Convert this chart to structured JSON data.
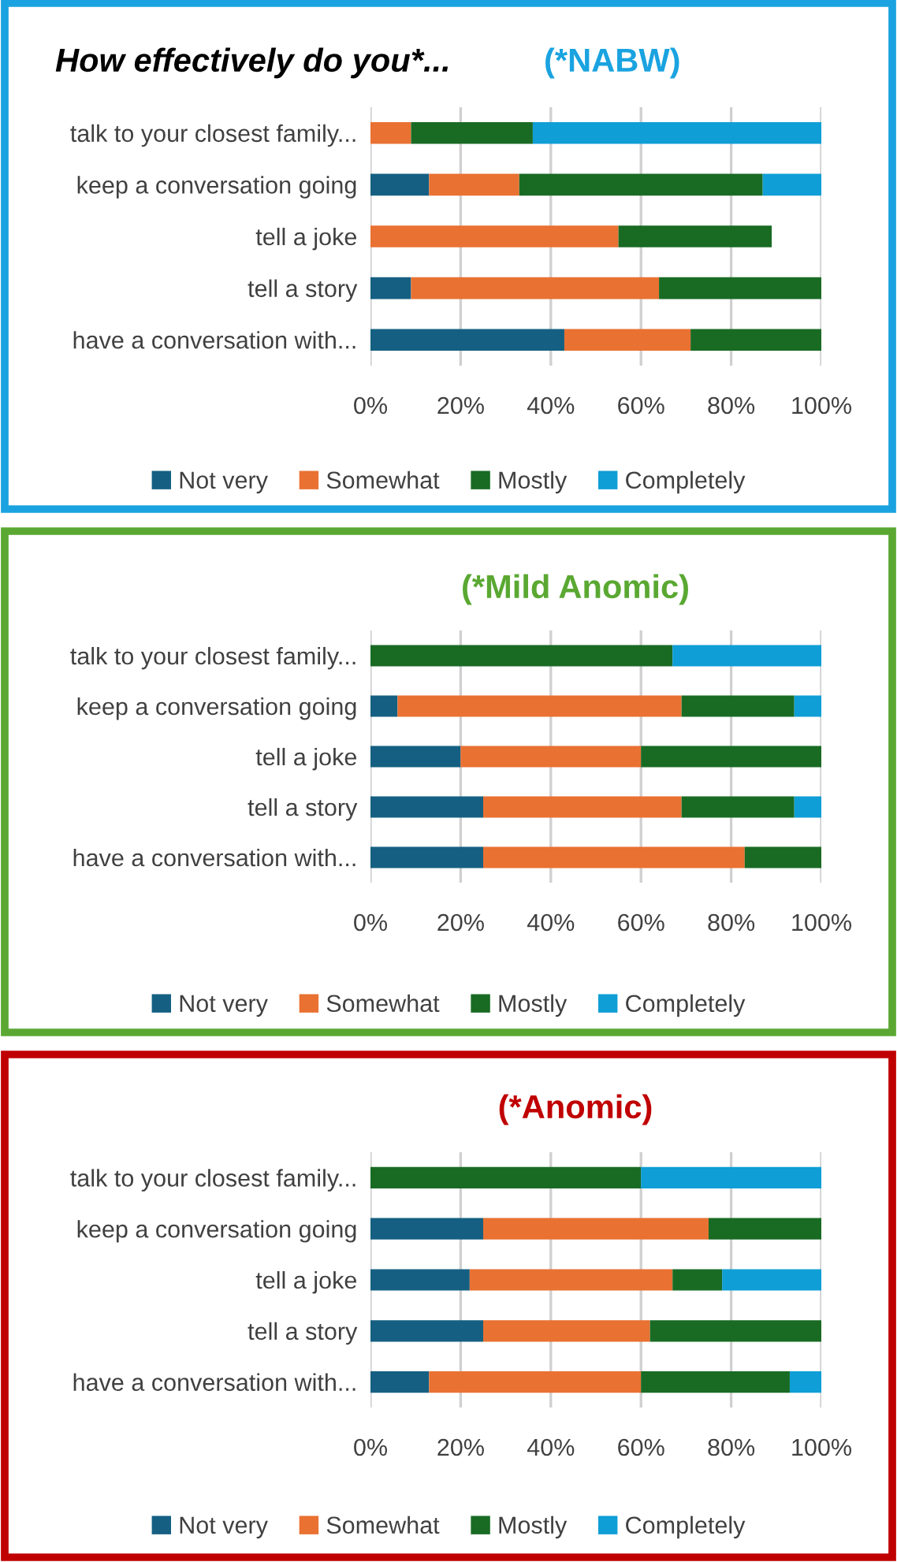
{
  "chart_data": [
    {
      "type": "bar",
      "orientation": "horizontal",
      "stacked": true,
      "title": "How effectively do you*...",
      "subtitle": "(*NABW)",
      "categories": [
        "talk to your closest family...",
        "keep a conversation going",
        "tell a joke",
        "tell a story",
        "have a conversation with..."
      ],
      "series": [
        {
          "name": "Not very",
          "color": "#156082",
          "values": [
            0,
            13,
            0,
            9,
            43
          ]
        },
        {
          "name": "Somewhat",
          "color": "#e97132",
          "values": [
            9,
            20,
            55,
            55,
            28
          ]
        },
        {
          "name": "Mostly",
          "color": "#196b24",
          "values": [
            27,
            54,
            34,
            36,
            29
          ]
        },
        {
          "name": "Completely",
          "color": "#0f9ed5",
          "values": [
            64,
            13,
            0,
            0,
            0
          ]
        }
      ],
      "xlim": [
        0,
        100
      ],
      "xticks": [
        {
          "value": 0,
          "label": "0%"
        },
        {
          "value": 20,
          "label": "20%"
        },
        {
          "value": 40,
          "label": "40%"
        },
        {
          "value": 60,
          "label": "60%"
        },
        {
          "value": 80,
          "label": "80%"
        },
        {
          "value": 100,
          "label": "100%"
        }
      ],
      "grid": "x",
      "legend": "bottom"
    },
    {
      "type": "bar",
      "orientation": "horizontal",
      "stacked": true,
      "title": "(*Mild Anomic)",
      "categories": [
        "talk to your closest family...",
        "keep a conversation going",
        "tell a joke",
        "tell a story",
        "have a conversation with..."
      ],
      "series": [
        {
          "name": "Not very",
          "color": "#156082",
          "values": [
            0,
            6,
            20,
            25,
            25
          ]
        },
        {
          "name": "Somewhat",
          "color": "#e97132",
          "values": [
            0,
            63,
            40,
            44,
            58
          ]
        },
        {
          "name": "Mostly",
          "color": "#196b24",
          "values": [
            67,
            25,
            40,
            25,
            17
          ]
        },
        {
          "name": "Completely",
          "color": "#0f9ed5",
          "values": [
            33,
            6,
            0,
            6,
            0
          ]
        }
      ],
      "xlim": [
        0,
        100
      ],
      "xticks": [
        {
          "value": 0,
          "label": "0%"
        },
        {
          "value": 20,
          "label": "20%"
        },
        {
          "value": 40,
          "label": "40%"
        },
        {
          "value": 60,
          "label": "60%"
        },
        {
          "value": 80,
          "label": "80%"
        },
        {
          "value": 100,
          "label": "100%"
        }
      ],
      "grid": "x",
      "legend": "bottom"
    },
    {
      "type": "bar",
      "orientation": "horizontal",
      "stacked": true,
      "title": "(*Anomic)",
      "categories": [
        "talk to your closest family...",
        "keep a conversation going",
        "tell a joke",
        "tell a story",
        "have a conversation with..."
      ],
      "series": [
        {
          "name": "Not very",
          "color": "#156082",
          "values": [
            0,
            25,
            22,
            25,
            13
          ]
        },
        {
          "name": "Somewhat",
          "color": "#e97132",
          "values": [
            0,
            50,
            45,
            37,
            47
          ]
        },
        {
          "name": "Mostly",
          "color": "#196b24",
          "values": [
            60,
            25,
            11,
            38,
            33
          ]
        },
        {
          "name": "Completely",
          "color": "#0f9ed5",
          "values": [
            40,
            0,
            22,
            0,
            7
          ]
        }
      ],
      "xlim": [
        0,
        100
      ],
      "xticks": [
        {
          "value": 0,
          "label": "0%"
        },
        {
          "value": 20,
          "label": "20%"
        },
        {
          "value": 40,
          "label": "40%"
        },
        {
          "value": 60,
          "label": "60%"
        },
        {
          "value": 80,
          "label": "80%"
        },
        {
          "value": 100,
          "label": "100%"
        }
      ],
      "grid": "x",
      "legend": "bottom"
    }
  ]
}
